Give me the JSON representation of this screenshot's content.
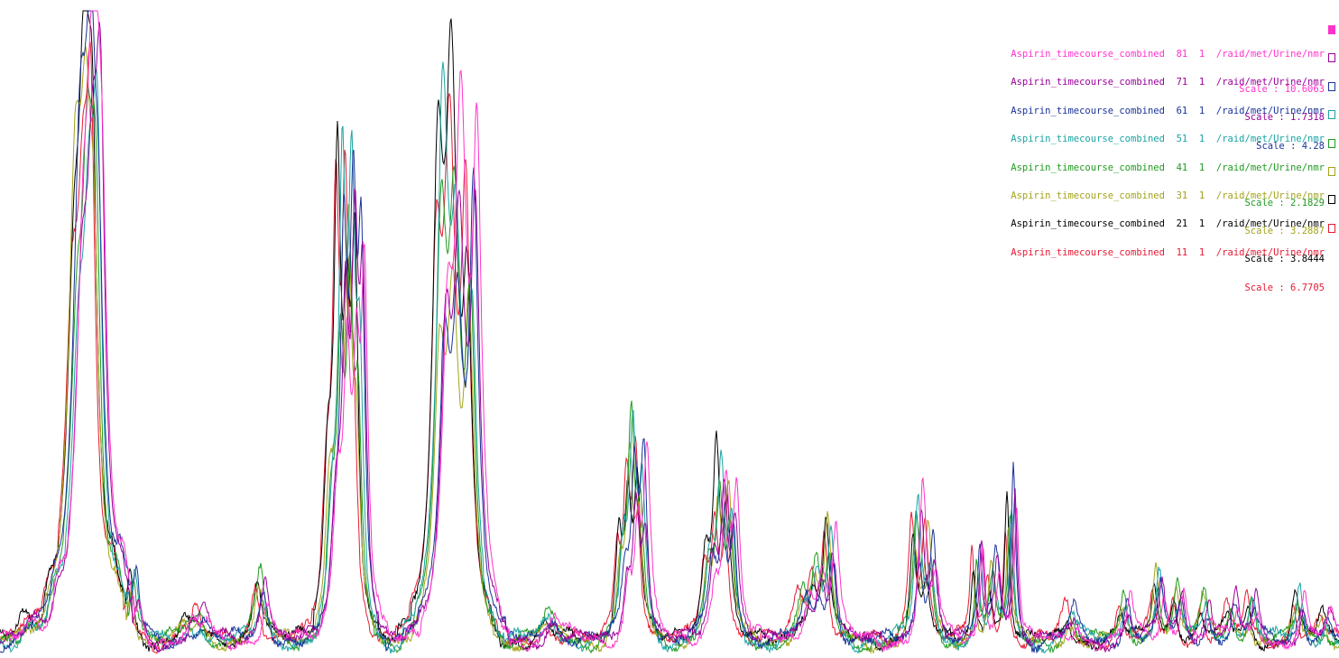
{
  "window": {
    "description_free": true
  },
  "legend": {
    "items": [
      {
        "dataset": "Aspirin_timecourse_combined",
        "expno": "81",
        "procno": "1",
        "path": "/raid/met/Urine/nmr",
        "scale": "Scale : 10.6063",
        "color": "#ff33cc",
        "selected": true
      },
      {
        "dataset": "Aspirin_timecourse_combined",
        "expno": "71",
        "procno": "1",
        "path": "/raid/met/Urine/nmr",
        "scale": "Scale : 1.7318",
        "color": "#990099",
        "selected": false
      },
      {
        "dataset": "Aspirin_timecourse_combined",
        "expno": "61",
        "procno": "1",
        "path": "/raid/met/Urine/nmr",
        "scale": "Scale : 4.28",
        "color": "#1a3399",
        "selected": false
      },
      {
        "dataset": "Aspirin_timecourse_combined",
        "expno": "51",
        "procno": "1",
        "path": "/raid/met/Urine/nmr",
        "scale": "",
        "color": "#1aa3a3",
        "selected": false
      },
      {
        "dataset": "Aspirin_timecourse_combined",
        "expno": "41",
        "procno": "1",
        "path": "/raid/met/Urine/nmr",
        "scale": "Scale : 2.1829",
        "color": "#1f9a1f",
        "selected": false
      },
      {
        "dataset": "Aspirin_timecourse_combined",
        "expno": "31",
        "procno": "1",
        "path": "/raid/met/Urine/nmr",
        "scale": "Scale : 3.2887",
        "color": "#a3a31a",
        "selected": false
      },
      {
        "dataset": "Aspirin_timecourse_combined",
        "expno": "21",
        "procno": "1",
        "path": "/raid/met/Urine/nmr",
        "scale": "Scale : 3.8444",
        "color": "#000000",
        "selected": false
      },
      {
        "dataset": "Aspirin_timecourse_combined",
        "expno": "11",
        "procno": "1",
        "path": "/raid/met/Urine/nmr",
        "scale": "Scale : 6.7705",
        "color": "#e61a33",
        "selected": false
      }
    ]
  },
  "chart_data": {
    "type": "line",
    "series_colors": [
      "#e61a33",
      "#000000",
      "#a3a31a",
      "#1f9a1f",
      "#1aa3a3",
      "#1a3399",
      "#990099",
      "#ff33cc"
    ],
    "peaks": [
      {
        "c": 0.02,
        "h": 0.06,
        "w": 0.004
      },
      {
        "c": 0.04,
        "h": 0.08,
        "w": 0.005
      },
      {
        "c": 0.058,
        "h": 1.2,
        "w": 0.006
      },
      {
        "c": 0.066,
        "h": 1.3,
        "w": 0.005
      },
      {
        "c": 0.072,
        "h": 1.25,
        "w": 0.004
      },
      {
        "c": 0.088,
        "h": 0.12,
        "w": 0.004
      },
      {
        "c": 0.1,
        "h": 0.2,
        "w": 0.003
      },
      {
        "c": 0.14,
        "h": 0.05,
        "w": 0.004
      },
      {
        "c": 0.15,
        "h": 0.08,
        "w": 0.004
      },
      {
        "c": 0.195,
        "h": 0.2,
        "w": 0.004
      },
      {
        "c": 0.248,
        "h": 0.4,
        "w": 0.004
      },
      {
        "c": 0.255,
        "h": 1.2,
        "w": 0.003
      },
      {
        "c": 0.262,
        "h": 1.1,
        "w": 0.003
      },
      {
        "c": 0.268,
        "h": 0.9,
        "w": 0.003
      },
      {
        "c": 0.33,
        "h": 1.3,
        "w": 0.005
      },
      {
        "c": 0.34,
        "h": 1.35,
        "w": 0.005
      },
      {
        "c": 0.352,
        "h": 1.2,
        "w": 0.004
      },
      {
        "c": 0.41,
        "h": 0.08,
        "w": 0.006
      },
      {
        "c": 0.465,
        "h": 0.25,
        "w": 0.003
      },
      {
        "c": 0.472,
        "h": 0.52,
        "w": 0.003
      },
      {
        "c": 0.479,
        "h": 0.48,
        "w": 0.003
      },
      {
        "c": 0.53,
        "h": 0.2,
        "w": 0.004
      },
      {
        "c": 0.538,
        "h": 0.52,
        "w": 0.003
      },
      {
        "c": 0.546,
        "h": 0.38,
        "w": 0.003
      },
      {
        "c": 0.6,
        "h": 0.12,
        "w": 0.004
      },
      {
        "c": 0.61,
        "h": 0.2,
        "w": 0.004
      },
      {
        "c": 0.62,
        "h": 0.32,
        "w": 0.003
      },
      {
        "c": 0.685,
        "h": 0.42,
        "w": 0.003
      },
      {
        "c": 0.695,
        "h": 0.3,
        "w": 0.003
      },
      {
        "c": 0.73,
        "h": 0.24,
        "w": 0.002
      },
      {
        "c": 0.742,
        "h": 0.25,
        "w": 0.003
      },
      {
        "c": 0.755,
        "h": 0.45,
        "w": 0.002
      },
      {
        "c": 0.8,
        "h": 0.1,
        "w": 0.004
      },
      {
        "c": 0.84,
        "h": 0.14,
        "w": 0.003
      },
      {
        "c": 0.865,
        "h": 0.2,
        "w": 0.003
      },
      {
        "c": 0.88,
        "h": 0.16,
        "w": 0.003
      },
      {
        "c": 0.9,
        "h": 0.12,
        "w": 0.003
      },
      {
        "c": 0.92,
        "h": 0.14,
        "w": 0.003
      },
      {
        "c": 0.935,
        "h": 0.12,
        "w": 0.003
      },
      {
        "c": 0.97,
        "h": 0.14,
        "w": 0.003
      },
      {
        "c": 0.99,
        "h": 0.08,
        "w": 0.003
      }
    ]
  }
}
